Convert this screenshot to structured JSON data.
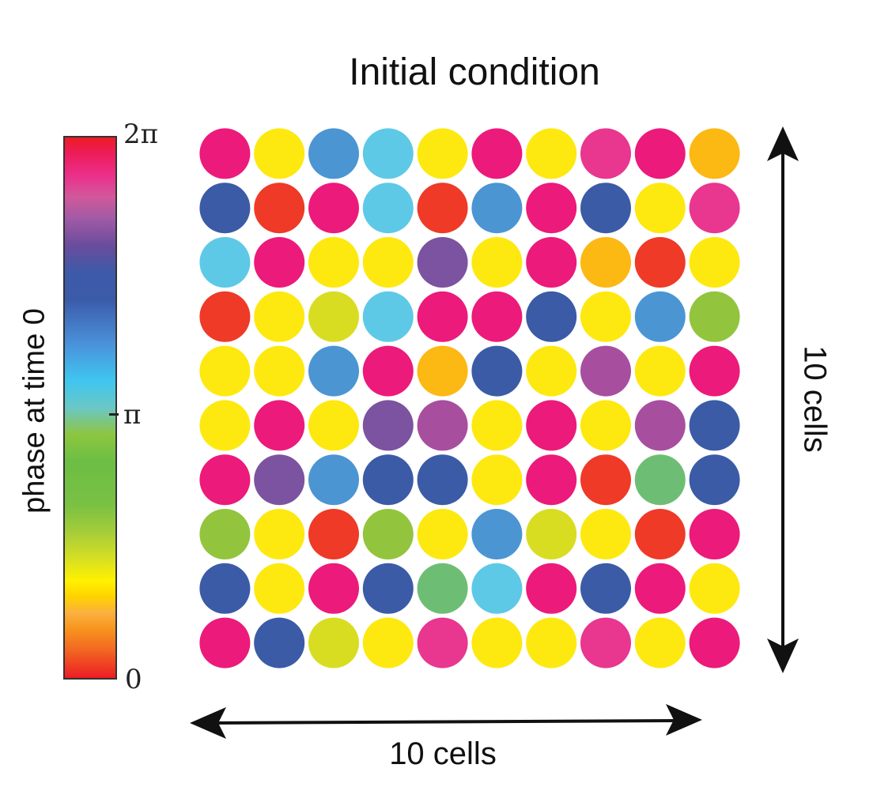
{
  "title": "Initial condition",
  "colorbar": {
    "label": "phase at time 0",
    "tick_top": "2π",
    "tick_mid": "π",
    "tick_bottom": "0"
  },
  "grid_labels": {
    "right": "10 cells",
    "bottom": "10 cells"
  },
  "palette": {
    "M": "#ec1a7a",
    "Y": "#fde910",
    "B": "#4b95d3",
    "C": "#5ec9e6",
    "N": "#3b5ba7",
    "R": "#ee3a27",
    "P": "#e9368f",
    "O": "#fcb813",
    "V": "#7b53a0",
    "L": "#d9dd21",
    "G": "#93c43e",
    "K": "#a84e9f",
    "T": "#6dbe74"
  },
  "cells": [
    [
      "M",
      "Y",
      "B",
      "C",
      "Y",
      "M",
      "Y",
      "P",
      "M",
      "O"
    ],
    [
      "N",
      "R",
      "M",
      "C",
      "R",
      "B",
      "M",
      "N",
      "Y",
      "P"
    ],
    [
      "C",
      "M",
      "Y",
      "Y",
      "V",
      "Y",
      "M",
      "O",
      "R",
      "Y"
    ],
    [
      "R",
      "Y",
      "L",
      "C",
      "M",
      "M",
      "N",
      "Y",
      "B",
      "G"
    ],
    [
      "Y",
      "Y",
      "B",
      "M",
      "O",
      "N",
      "Y",
      "K",
      "Y",
      "M"
    ],
    [
      "Y",
      "M",
      "Y",
      "V",
      "K",
      "Y",
      "M",
      "Y",
      "K",
      "N"
    ],
    [
      "M",
      "V",
      "B",
      "N",
      "N",
      "Y",
      "M",
      "R",
      "T",
      "N"
    ],
    [
      "G",
      "Y",
      "R",
      "G",
      "Y",
      "B",
      "L",
      "Y",
      "R",
      "M"
    ],
    [
      "N",
      "Y",
      "M",
      "N",
      "T",
      "C",
      "M",
      "N",
      "M",
      "Y"
    ],
    [
      "M",
      "N",
      "L",
      "Y",
      "P",
      "Y",
      "Y",
      "P",
      "Y",
      "M"
    ]
  ]
}
